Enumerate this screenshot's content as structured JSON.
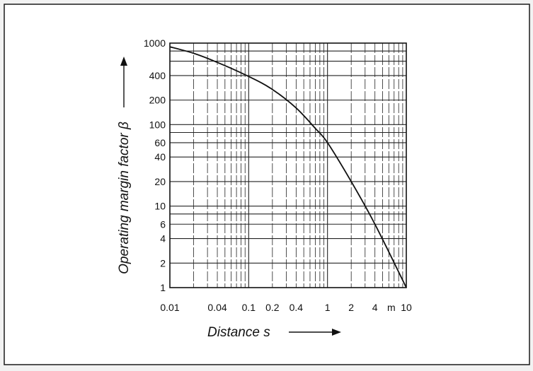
{
  "chart_data": {
    "type": "line",
    "title": "",
    "xlabel": "Distance s",
    "ylabel": "Operating margin factor  β",
    "x_scale": "log",
    "y_scale": "log",
    "xlim": [
      0.01,
      10
    ],
    "ylim": [
      1,
      1000
    ],
    "grid": true,
    "legend": "none",
    "x_ticks": [
      {
        "value": 0.01,
        "label": "0.01"
      },
      {
        "value": 0.04,
        "label": "0.04"
      },
      {
        "value": 0.1,
        "label": "0.1"
      },
      {
        "value": 0.2,
        "label": "0.2"
      },
      {
        "value": 0.4,
        "label": "0.4"
      },
      {
        "value": 1,
        "label": "1"
      },
      {
        "value": 2,
        "label": "2"
      },
      {
        "value": 4,
        "label": "4"
      },
      {
        "value": 10,
        "label": "10"
      }
    ],
    "x_unit_label": "m",
    "y_ticks": [
      {
        "value": 1,
        "label": "1"
      },
      {
        "value": 2,
        "label": "2"
      },
      {
        "value": 4,
        "label": "4"
      },
      {
        "value": 6,
        "label": "6"
      },
      {
        "value": 10,
        "label": "10"
      },
      {
        "value": 20,
        "label": "20"
      },
      {
        "value": 40,
        "label": "40"
      },
      {
        "value": 60,
        "label": "60"
      },
      {
        "value": 100,
        "label": "100"
      },
      {
        "value": 200,
        "label": "200"
      },
      {
        "value": 400,
        "label": "400"
      },
      {
        "value": 1000,
        "label": "1000"
      }
    ],
    "series": [
      {
        "x": [
          0.01,
          0.02,
          0.04,
          0.1,
          0.2,
          0.4,
          0.7,
          1,
          2,
          4,
          10
        ],
        "y": [
          900,
          750,
          580,
          390,
          270,
          160,
          90,
          60,
          20,
          6,
          1
        ],
        "color": "#111111"
      }
    ]
  }
}
